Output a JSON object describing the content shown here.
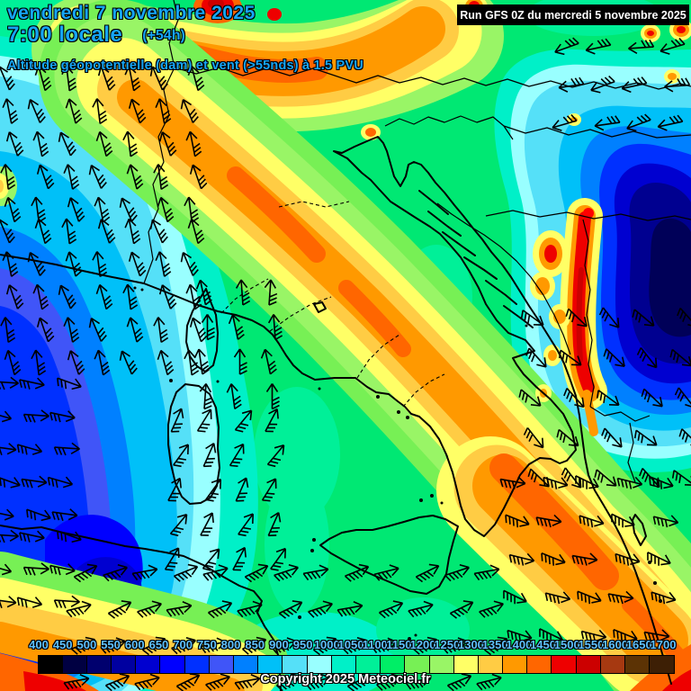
{
  "header": {
    "date_line": "vendredi 7 novembre 2025",
    "time_line": "7:00 locale",
    "offset_label": "(+54h)",
    "subtitle": "Altitude géopotentielle (dam) et vent (>55nds) à 1.5 PVU",
    "title_color": "#16a5f5"
  },
  "run_box": {
    "label": "Run GFS 0Z du mercredi 5 novembre 2025",
    "bg": "#000000",
    "fg": "#ffffff"
  },
  "scale": {
    "unit": "dam",
    "labels": [
      "400",
      "450",
      "500",
      "550",
      "600",
      "650",
      "700",
      "750",
      "800",
      "850",
      "900",
      "950",
      "1000",
      "1050",
      "1100",
      "1150",
      "1200",
      "1250",
      "1300",
      "1350",
      "1400",
      "1450",
      "1500",
      "1550",
      "1600",
      "1650",
      "1700"
    ],
    "colors": [
      "#000000",
      "#000042",
      "#00006e",
      "#0000a0",
      "#0000d0",
      "#0000ff",
      "#0030ff",
      "#4055f8",
      "#0080ff",
      "#00c0f8",
      "#55e0f8",
      "#99ffff",
      "#00f0c8",
      "#00f098",
      "#00ee66",
      "#77f055",
      "#99f566",
      "#ffff66",
      "#ffcc44",
      "#ff9900",
      "#ff6600",
      "#ee0000",
      "#cc0000",
      "#a63911",
      "#5c3305",
      "#3d1f05"
    ],
    "label_color": "#5ec1ff"
  },
  "footer": {
    "copyright": "Copyright 2025 Meteociel.fr"
  },
  "icons": {
    "wind_barb": "wind-barb-icon"
  }
}
